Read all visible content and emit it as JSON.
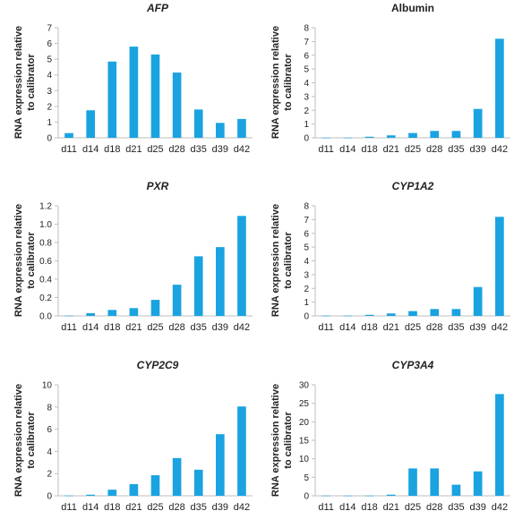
{
  "colors": {
    "bar": "#1aa3e0",
    "axis": "#bfbfbf",
    "grid": "#d9d9d9",
    "text": "#222222"
  },
  "chart_data": [
    {
      "type": "bar",
      "title": "AFP",
      "title_italic": true,
      "xlabel": "",
      "ylabel": "RNA expression relative to calibrator",
      "ylabel_lines": [
        "RNA expression relative",
        "to calibrator"
      ],
      "categories": [
        "d11",
        "d14",
        "d18",
        "d21",
        "d25",
        "d28",
        "d35",
        "d39",
        "d42"
      ],
      "values": [
        0.3,
        1.75,
        4.85,
        5.8,
        5.3,
        4.15,
        1.8,
        0.95,
        1.2
      ],
      "ylim": [
        0,
        7
      ],
      "yticks": [
        0,
        1,
        2,
        3,
        4,
        5,
        6,
        7
      ],
      "ytick_labels": [
        "0",
        "1",
        "2",
        "3",
        "4",
        "5",
        "6",
        "7"
      ],
      "grid": false,
      "legend": "none"
    },
    {
      "type": "bar",
      "title": "Albumin",
      "title_italic": false,
      "xlabel": "",
      "ylabel": "RNA expression relative to calibrator",
      "ylabel_lines": [
        "RNA expression relative",
        "to calibrator"
      ],
      "categories": [
        "d11",
        "d14",
        "d18",
        "d21",
        "d25",
        "d28",
        "d35",
        "d39",
        "d42"
      ],
      "values": [
        0.01,
        0.01,
        0.08,
        0.18,
        0.35,
        0.5,
        0.5,
        2.1,
        7.2
      ],
      "ylim": [
        0,
        8
      ],
      "yticks": [
        0,
        1,
        2,
        3,
        4,
        5,
        6,
        7,
        8
      ],
      "ytick_labels": [
        "0",
        "1",
        "2",
        "3",
        "4",
        "5",
        "6",
        "7",
        "8"
      ],
      "grid": false,
      "legend": "none"
    },
    {
      "type": "bar",
      "title": "PXR",
      "title_italic": true,
      "xlabel": "",
      "ylabel": "RNA expression relative to calibrator",
      "ylabel_lines": [
        "RNA expression relative",
        "to calibrator"
      ],
      "categories": [
        "d11",
        "d14",
        "d18",
        "d21",
        "d25",
        "d28",
        "d35",
        "d39",
        "d42"
      ],
      "values": [
        0.003,
        0.03,
        0.065,
        0.085,
        0.175,
        0.34,
        0.65,
        0.75,
        1.09
      ],
      "ylim": [
        0,
        1.2
      ],
      "yticks": [
        0,
        0.2,
        0.4,
        0.6,
        0.8,
        1.0,
        1.2
      ],
      "ytick_labels": [
        "0.0",
        "0.2",
        "0.4",
        "0.6",
        "0.8",
        "1.0",
        "1.2"
      ],
      "grid": false,
      "legend": "none"
    },
    {
      "type": "bar",
      "title": "CYP1A2",
      "title_italic": true,
      "xlabel": "",
      "ylabel": "RNA expression relative to calibrator",
      "ylabel_lines": [
        "RNA expression relative",
        "to calibrator"
      ],
      "categories": [
        "d11",
        "d14",
        "d18",
        "d21",
        "d25",
        "d28",
        "d35",
        "d39",
        "d42"
      ],
      "values": [
        0.02,
        0.02,
        0.08,
        0.18,
        0.35,
        0.5,
        0.5,
        2.1,
        7.2
      ],
      "ylim": [
        0,
        8
      ],
      "yticks": [
        0,
        1,
        2,
        3,
        4,
        5,
        6,
        7,
        8
      ],
      "ytick_labels": [
        "0",
        "1",
        "2",
        "3",
        "4",
        "5",
        "6",
        "7",
        "8"
      ],
      "grid": false,
      "legend": "none"
    },
    {
      "type": "bar",
      "title": "CYP2C9",
      "title_italic": true,
      "xlabel": "",
      "ylabel": "RNA expression relative to calibrator",
      "ylabel_lines": [
        "RNA expression relative",
        "to calibrator"
      ],
      "categories": [
        "d11",
        "d14",
        "d18",
        "d21",
        "d25",
        "d28",
        "d35",
        "d39",
        "d42"
      ],
      "values": [
        0.02,
        0.1,
        0.55,
        1.05,
        1.85,
        3.4,
        2.35,
        5.55,
        8.05
      ],
      "ylim": [
        0,
        10
      ],
      "yticks": [
        0,
        2,
        4,
        6,
        8,
        10
      ],
      "ytick_labels": [
        "0",
        "2",
        "4",
        "6",
        "8",
        "10"
      ],
      "grid": false,
      "legend": "none"
    },
    {
      "type": "bar",
      "title": "CYP3A4",
      "title_italic": true,
      "xlabel": "",
      "ylabel": "RNA expression relative to calibrator",
      "ylabel_lines": [
        "RNA expression relative",
        "to calibrator"
      ],
      "categories": [
        "d11",
        "d14",
        "d18",
        "d21",
        "d25",
        "d28",
        "d35",
        "d39",
        "d42"
      ],
      "values": [
        0.05,
        0.05,
        0.05,
        0.3,
        7.4,
        7.4,
        3.0,
        6.6,
        27.5
      ],
      "ylim": [
        0,
        30
      ],
      "yticks": [
        0,
        5,
        10,
        15,
        20,
        25,
        30
      ],
      "ytick_labels": [
        "0",
        "5",
        "10",
        "15",
        "20",
        "25",
        "30"
      ],
      "grid": false,
      "legend": "none"
    }
  ]
}
